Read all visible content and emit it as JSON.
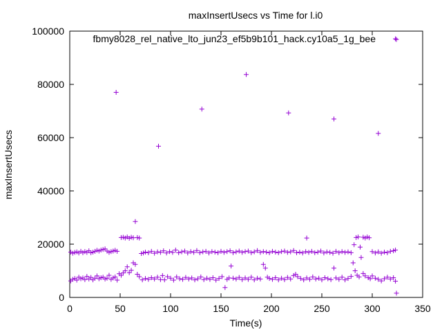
{
  "chart_data": {
    "type": "scatter",
    "title": "maxInsertUsecs vs Time for l.i0",
    "xlabel": "Time(s)",
    "ylabel": "maxInsertUsecs",
    "xlim": [
      0,
      350
    ],
    "ylim": [
      0,
      100000
    ],
    "x_ticks": [
      "0",
      "50",
      "100",
      "150",
      "200",
      "250",
      "300",
      "350"
    ],
    "y_ticks": [
      "0",
      "20000",
      "40000",
      "60000",
      "80000",
      "100000"
    ],
    "grid": false,
    "legend_position": "top-right",
    "marker_color": "#9400d3",
    "series": [
      {
        "name": "fbmy8028_rel_native_lto_jun23_ef5b9b101_hack.cy10a5_1g_bee",
        "points": [
          [
            1,
            6200
          ],
          [
            3,
            6800
          ],
          [
            5,
            7100
          ],
          [
            7,
            6500
          ],
          [
            9,
            7600
          ],
          [
            11,
            7000
          ],
          [
            13,
            7300
          ],
          [
            15,
            6700
          ],
          [
            17,
            7900
          ],
          [
            19,
            6900
          ],
          [
            21,
            7500
          ],
          [
            23,
            6600
          ],
          [
            25,
            7200
          ],
          [
            27,
            8100
          ],
          [
            29,
            7000
          ],
          [
            31,
            7400
          ],
          [
            33,
            7600
          ],
          [
            35,
            6900
          ],
          [
            37,
            7200
          ],
          [
            39,
            8300
          ],
          [
            41,
            6800
          ],
          [
            43,
            7300
          ],
          [
            45,
            7700
          ],
          [
            47,
            6500
          ],
          [
            49,
            8900
          ],
          [
            51,
            8300
          ],
          [
            53,
            9200
          ],
          [
            55,
            10000
          ],
          [
            57,
            11500
          ],
          [
            59,
            9300
          ],
          [
            61,
            10200
          ],
          [
            63,
            13000
          ],
          [
            65,
            12400
          ],
          [
            67,
            8700
          ],
          [
            69,
            7800
          ],
          [
            72,
            6600
          ],
          [
            75,
            7100
          ],
          [
            78,
            6800
          ],
          [
            81,
            7400
          ],
          [
            84,
            6900
          ],
          [
            87,
            7600
          ],
          [
            90,
            6700
          ],
          [
            92,
            8200
          ],
          [
            94,
            6600
          ],
          [
            97,
            7800
          ],
          [
            100,
            7200
          ],
          [
            103,
            6500
          ],
          [
            106,
            7700
          ],
          [
            109,
            7000
          ],
          [
            112,
            6800
          ],
          [
            115,
            7500
          ],
          [
            118,
            6900
          ],
          [
            121,
            7300
          ],
          [
            124,
            6600
          ],
          [
            127,
            7000
          ],
          [
            130,
            7700
          ],
          [
            133,
            6700
          ],
          [
            136,
            7200
          ],
          [
            139,
            6800
          ],
          [
            142,
            7400
          ],
          [
            145,
            6500
          ],
          [
            148,
            7100
          ],
          [
            151,
            7800
          ],
          [
            154,
            3700
          ],
          [
            156,
            6800
          ],
          [
            158,
            7300
          ],
          [
            160,
            11800
          ],
          [
            162,
            7200
          ],
          [
            165,
            6900
          ],
          [
            168,
            7500
          ],
          [
            171,
            6700
          ],
          [
            174,
            7300
          ],
          [
            177,
            6800
          ],
          [
            180,
            7600
          ],
          [
            183,
            6600
          ],
          [
            186,
            7200
          ],
          [
            189,
            6900
          ],
          [
            192,
            12400
          ],
          [
            194,
            11000
          ],
          [
            196,
            7600
          ],
          [
            198,
            7100
          ],
          [
            201,
            6800
          ],
          [
            204,
            7400
          ],
          [
            207,
            6600
          ],
          [
            210,
            7200
          ],
          [
            213,
            6700
          ],
          [
            216,
            7500
          ],
          [
            219,
            6900
          ],
          [
            222,
            8200
          ],
          [
            224,
            8700
          ],
          [
            226,
            7800
          ],
          [
            229,
            7100
          ],
          [
            232,
            6600
          ],
          [
            235,
            7300
          ],
          [
            238,
            6800
          ],
          [
            241,
            7700
          ],
          [
            244,
            6900
          ],
          [
            247,
            7200
          ],
          [
            250,
            6600
          ],
          [
            253,
            7400
          ],
          [
            256,
            7000
          ],
          [
            259,
            6700
          ],
          [
            262,
            11000
          ],
          [
            264,
            7300
          ],
          [
            267,
            6800
          ],
          [
            270,
            7600
          ],
          [
            273,
            6600
          ],
          [
            276,
            7100
          ],
          [
            279,
            7900
          ],
          [
            281,
            13000
          ],
          [
            283,
            10000
          ],
          [
            285,
            8300
          ],
          [
            287,
            7700
          ],
          [
            289,
            15000
          ],
          [
            291,
            9000
          ],
          [
            293,
            8100
          ],
          [
            296,
            7400
          ],
          [
            298,
            7000
          ],
          [
            300,
            8100
          ],
          [
            303,
            7200
          ],
          [
            306,
            6800
          ],
          [
            309,
            6200
          ],
          [
            312,
            7000
          ],
          [
            315,
            7600
          ],
          [
            318,
            6900
          ],
          [
            321,
            7400
          ],
          [
            323,
            6100
          ],
          [
            324,
            1600
          ],
          [
            1,
            17000
          ],
          [
            3,
            16600
          ],
          [
            5,
            16900
          ],
          [
            7,
            17100
          ],
          [
            9,
            16700
          ],
          [
            11,
            17300
          ],
          [
            13,
            16800
          ],
          [
            15,
            17200
          ],
          [
            17,
            16900
          ],
          [
            19,
            17500
          ],
          [
            21,
            16800
          ],
          [
            23,
            17000
          ],
          [
            25,
            17300
          ],
          [
            27,
            17700
          ],
          [
            29,
            17400
          ],
          [
            31,
            17800
          ],
          [
            33,
            18000
          ],
          [
            35,
            18200
          ],
          [
            37,
            17400
          ],
          [
            39,
            16900
          ],
          [
            41,
            17200
          ],
          [
            43,
            17400
          ],
          [
            45,
            17700
          ],
          [
            47,
            17300
          ],
          [
            51,
            22500
          ],
          [
            53,
            22600
          ],
          [
            55,
            22300
          ],
          [
            57,
            22700
          ],
          [
            59,
            22200
          ],
          [
            61,
            22600
          ],
          [
            63,
            22400
          ],
          [
            65,
            28500
          ],
          [
            67,
            22500
          ],
          [
            69,
            22300
          ],
          [
            71,
            16500
          ],
          [
            73,
            16700
          ],
          [
            75,
            17000
          ],
          [
            78,
            16800
          ],
          [
            81,
            17300
          ],
          [
            84,
            16600
          ],
          [
            87,
            17100
          ],
          [
            90,
            16900
          ],
          [
            93,
            17500
          ],
          [
            96,
            16700
          ],
          [
            99,
            17200
          ],
          [
            102,
            16900
          ],
          [
            105,
            17800
          ],
          [
            108,
            16800
          ],
          [
            111,
            17100
          ],
          [
            114,
            17400
          ],
          [
            117,
            16700
          ],
          [
            120,
            17200
          ],
          [
            123,
            16900
          ],
          [
            126,
            17600
          ],
          [
            129,
            16800
          ],
          [
            132,
            17100
          ],
          [
            135,
            17300
          ],
          [
            138,
            16700
          ],
          [
            141,
            17200
          ],
          [
            144,
            17000
          ],
          [
            147,
            16800
          ],
          [
            150,
            17300
          ],
          [
            153,
            16900
          ],
          [
            156,
            17200
          ],
          [
            159,
            17500
          ],
          [
            162,
            16800
          ],
          [
            165,
            17100
          ],
          [
            168,
            17400
          ],
          [
            171,
            16900
          ],
          [
            174,
            17200
          ],
          [
            177,
            17400
          ],
          [
            180,
            16800
          ],
          [
            183,
            17100
          ],
          [
            186,
            17600
          ],
          [
            189,
            16900
          ],
          [
            192,
            17200
          ],
          [
            195,
            17000
          ],
          [
            198,
            16800
          ],
          [
            201,
            17300
          ],
          [
            204,
            17000
          ],
          [
            207,
            16800
          ],
          [
            210,
            17200
          ],
          [
            213,
            17400
          ],
          [
            216,
            16900
          ],
          [
            219,
            17100
          ],
          [
            222,
            17600
          ],
          [
            225,
            16800
          ],
          [
            228,
            17000
          ],
          [
            231,
            16700
          ],
          [
            234,
            17200
          ],
          [
            237,
            16900
          ],
          [
            240,
            17300
          ],
          [
            243,
            16800
          ],
          [
            246,
            17000
          ],
          [
            249,
            17400
          ],
          [
            252,
            16700
          ],
          [
            255,
            17100
          ],
          [
            258,
            16900
          ],
          [
            261,
            16600
          ],
          [
            264,
            17300
          ],
          [
            267,
            16800
          ],
          [
            270,
            17200
          ],
          [
            273,
            16900
          ],
          [
            276,
            17100
          ],
          [
            279,
            16800
          ],
          [
            282,
            19800
          ],
          [
            284,
            22500
          ],
          [
            286,
            22700
          ],
          [
            288,
            18900
          ],
          [
            291,
            22600
          ],
          [
            293,
            22300
          ],
          [
            295,
            22700
          ],
          [
            297,
            22400
          ],
          [
            300,
            17200
          ],
          [
            303,
            16700
          ],
          [
            306,
            17100
          ],
          [
            309,
            16600
          ],
          [
            312,
            17000
          ],
          [
            315,
            16800
          ],
          [
            318,
            17300
          ],
          [
            321,
            17500
          ],
          [
            323,
            17800
          ],
          [
            46,
            77000
          ],
          [
            88,
            56800
          ],
          [
            131,
            70700
          ],
          [
            175,
            83700
          ],
          [
            217,
            69300
          ],
          [
            235,
            22300
          ],
          [
            262,
            67000
          ],
          [
            306,
            61600
          ],
          [
            323,
            97100
          ]
        ]
      }
    ]
  }
}
